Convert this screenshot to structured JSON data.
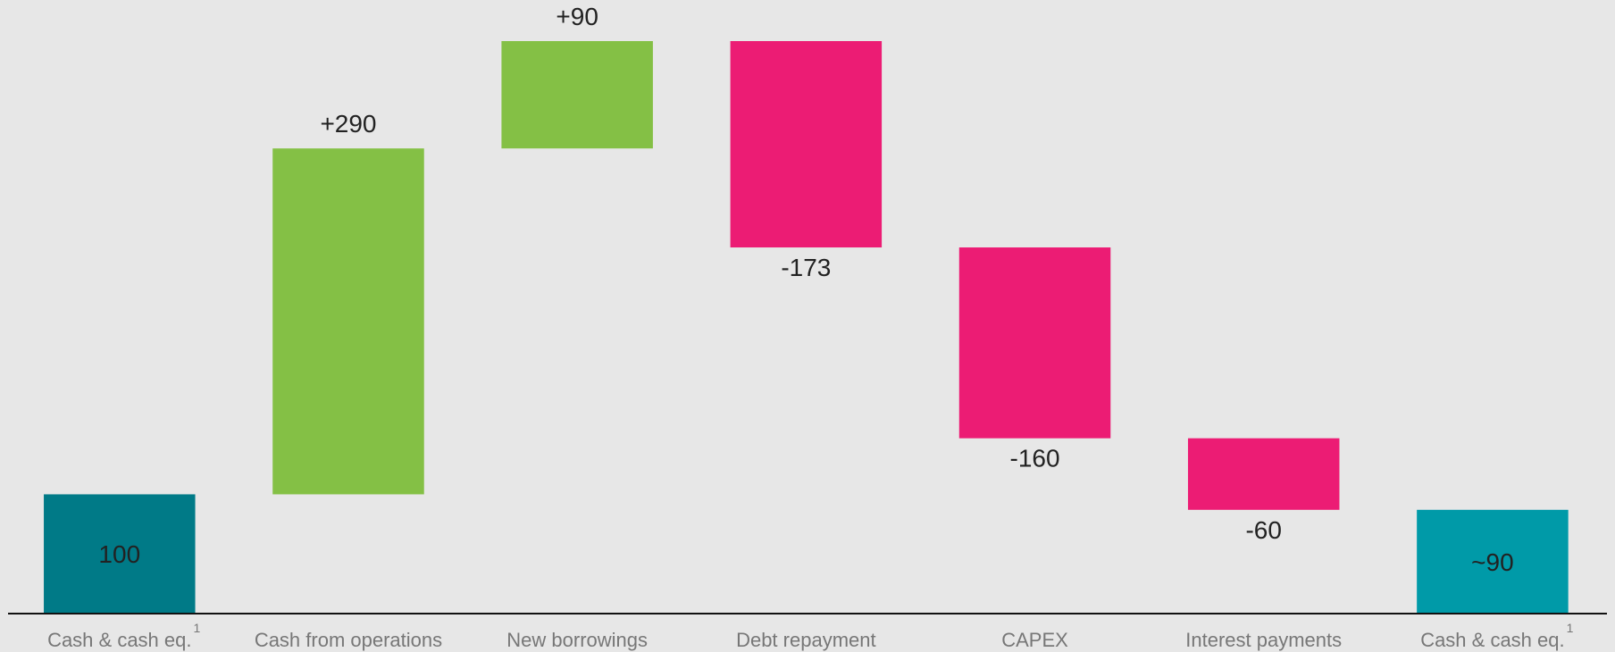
{
  "chart_data": {
    "type": "waterfall",
    "categories": [
      "Cash & cash eq.",
      "Cash from operations",
      "New borrowings",
      "Debt repayment",
      "CAPEX",
      "Interest payments",
      "Cash & cash eq."
    ],
    "category_notes": [
      "1",
      null,
      null,
      null,
      null,
      null,
      "1"
    ],
    "values": [
      100,
      290,
      90,
      -173,
      -160,
      -60,
      87
    ],
    "value_labels": [
      "100",
      "+290",
      "+90",
      "-173",
      "-160",
      "-60",
      "~90"
    ],
    "totals": [
      true,
      false,
      false,
      false,
      false,
      false,
      true
    ],
    "colors": [
      "#007a87",
      "#84c045",
      "#84c045",
      "#ec1c74",
      "#ec1c74",
      "#ec1c74",
      "#009aa8"
    ],
    "ylim": [
      0,
      500
    ]
  }
}
